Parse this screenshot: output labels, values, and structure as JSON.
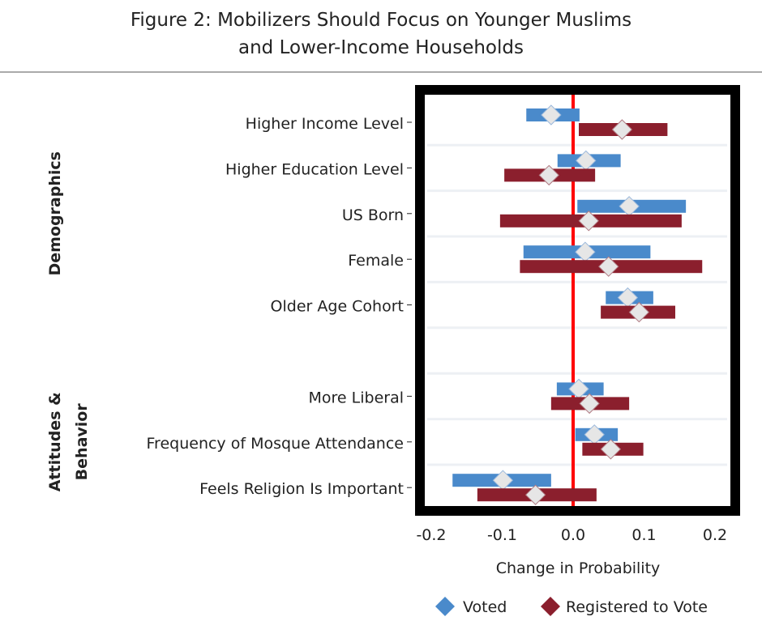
{
  "chart_data": {
    "type": "forest",
    "title": [
      "Figure 2: Mobilizers Should Focus on Younger Muslims",
      "and Lower-Income Households"
    ],
    "xlabel": "Change in Probability",
    "xlim": [
      -0.22,
      0.22
    ],
    "xticks": [
      -0.2,
      -0.1,
      0.0,
      0.1,
      0.2
    ],
    "xtick_labels": [
      "-0.2",
      "-0.1",
      "0.0",
      "0.1",
      "0.2"
    ],
    "reference_line": 0,
    "groups": [
      {
        "label": "Demographics",
        "rows": [
          0,
          4
        ]
      },
      {
        "label": "Attitudes & Behavior",
        "label_lines": [
          "Attitudes &",
          "Behavior"
        ],
        "rows": [
          6,
          8
        ]
      }
    ],
    "categories": [
      "Higher Income Level",
      "Higher Education Level",
      "US Born",
      "Female",
      "Older Age Cohort",
      "",
      "More Liberal",
      "Frequency of Mosque Attendance",
      "Feels Religion Is Important"
    ],
    "series": [
      {
        "name": "Voted",
        "color": "#4a8acb",
        "estimates": [
          -0.031,
          0.018,
          0.079,
          0.017,
          0.077,
          null,
          0.008,
          0.03,
          -0.099
        ],
        "lower": [
          -0.066,
          -0.022,
          0.006,
          -0.07,
          0.046,
          null,
          -0.023,
          0.003,
          -0.17
        ],
        "upper": [
          0.009,
          0.067,
          0.159,
          0.109,
          0.113,
          null,
          0.043,
          0.063,
          -0.031
        ]
      },
      {
        "name": "Registered to Vote",
        "color": "#8b1f2d",
        "estimates": [
          0.069,
          -0.034,
          0.022,
          0.05,
          0.093,
          null,
          0.023,
          0.053,
          -0.053
        ],
        "lower": [
          0.008,
          -0.097,
          -0.103,
          -0.075,
          0.039,
          null,
          -0.031,
          0.013,
          -0.135
        ],
        "upper": [
          0.133,
          0.031,
          0.153,
          0.182,
          0.144,
          null,
          0.079,
          0.099,
          0.033
        ]
      }
    ],
    "legend": {
      "placement": "bottom-right",
      "entries": [
        "Voted",
        "Registered to Vote"
      ]
    },
    "reference_color": "#ff0000"
  }
}
